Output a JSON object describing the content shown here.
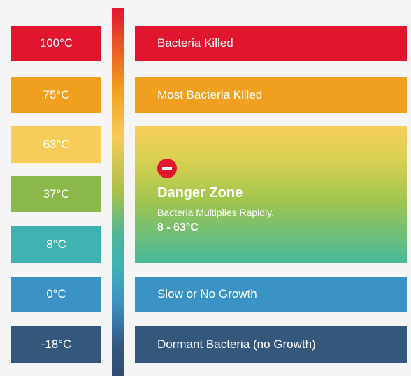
{
  "temperatures": [
    "100°C",
    "75°C",
    "63°C",
    "37°C",
    "8°C",
    "0°C",
    "-18°C"
  ],
  "bands": {
    "killed": "Bacteria Killed",
    "most_killed": "Most Bacteria Killed",
    "slow": "Slow or No Growth",
    "dormant": "Dormant Bacteria (no Growth)"
  },
  "danger": {
    "title": "Danger Zone",
    "subtitle": "Bacteria Multiplies Rapidly.",
    "range": "8 - 63°C"
  },
  "colors": {
    "red": "#e2152e",
    "orange": "#f0a01e",
    "yellow": "#f6cc5a",
    "green": "#8bb84a",
    "teal": "#3fb3b2",
    "blue": "#3b92c4",
    "navy": "#34577c"
  },
  "icons": {
    "danger": "no-entry-icon"
  }
}
